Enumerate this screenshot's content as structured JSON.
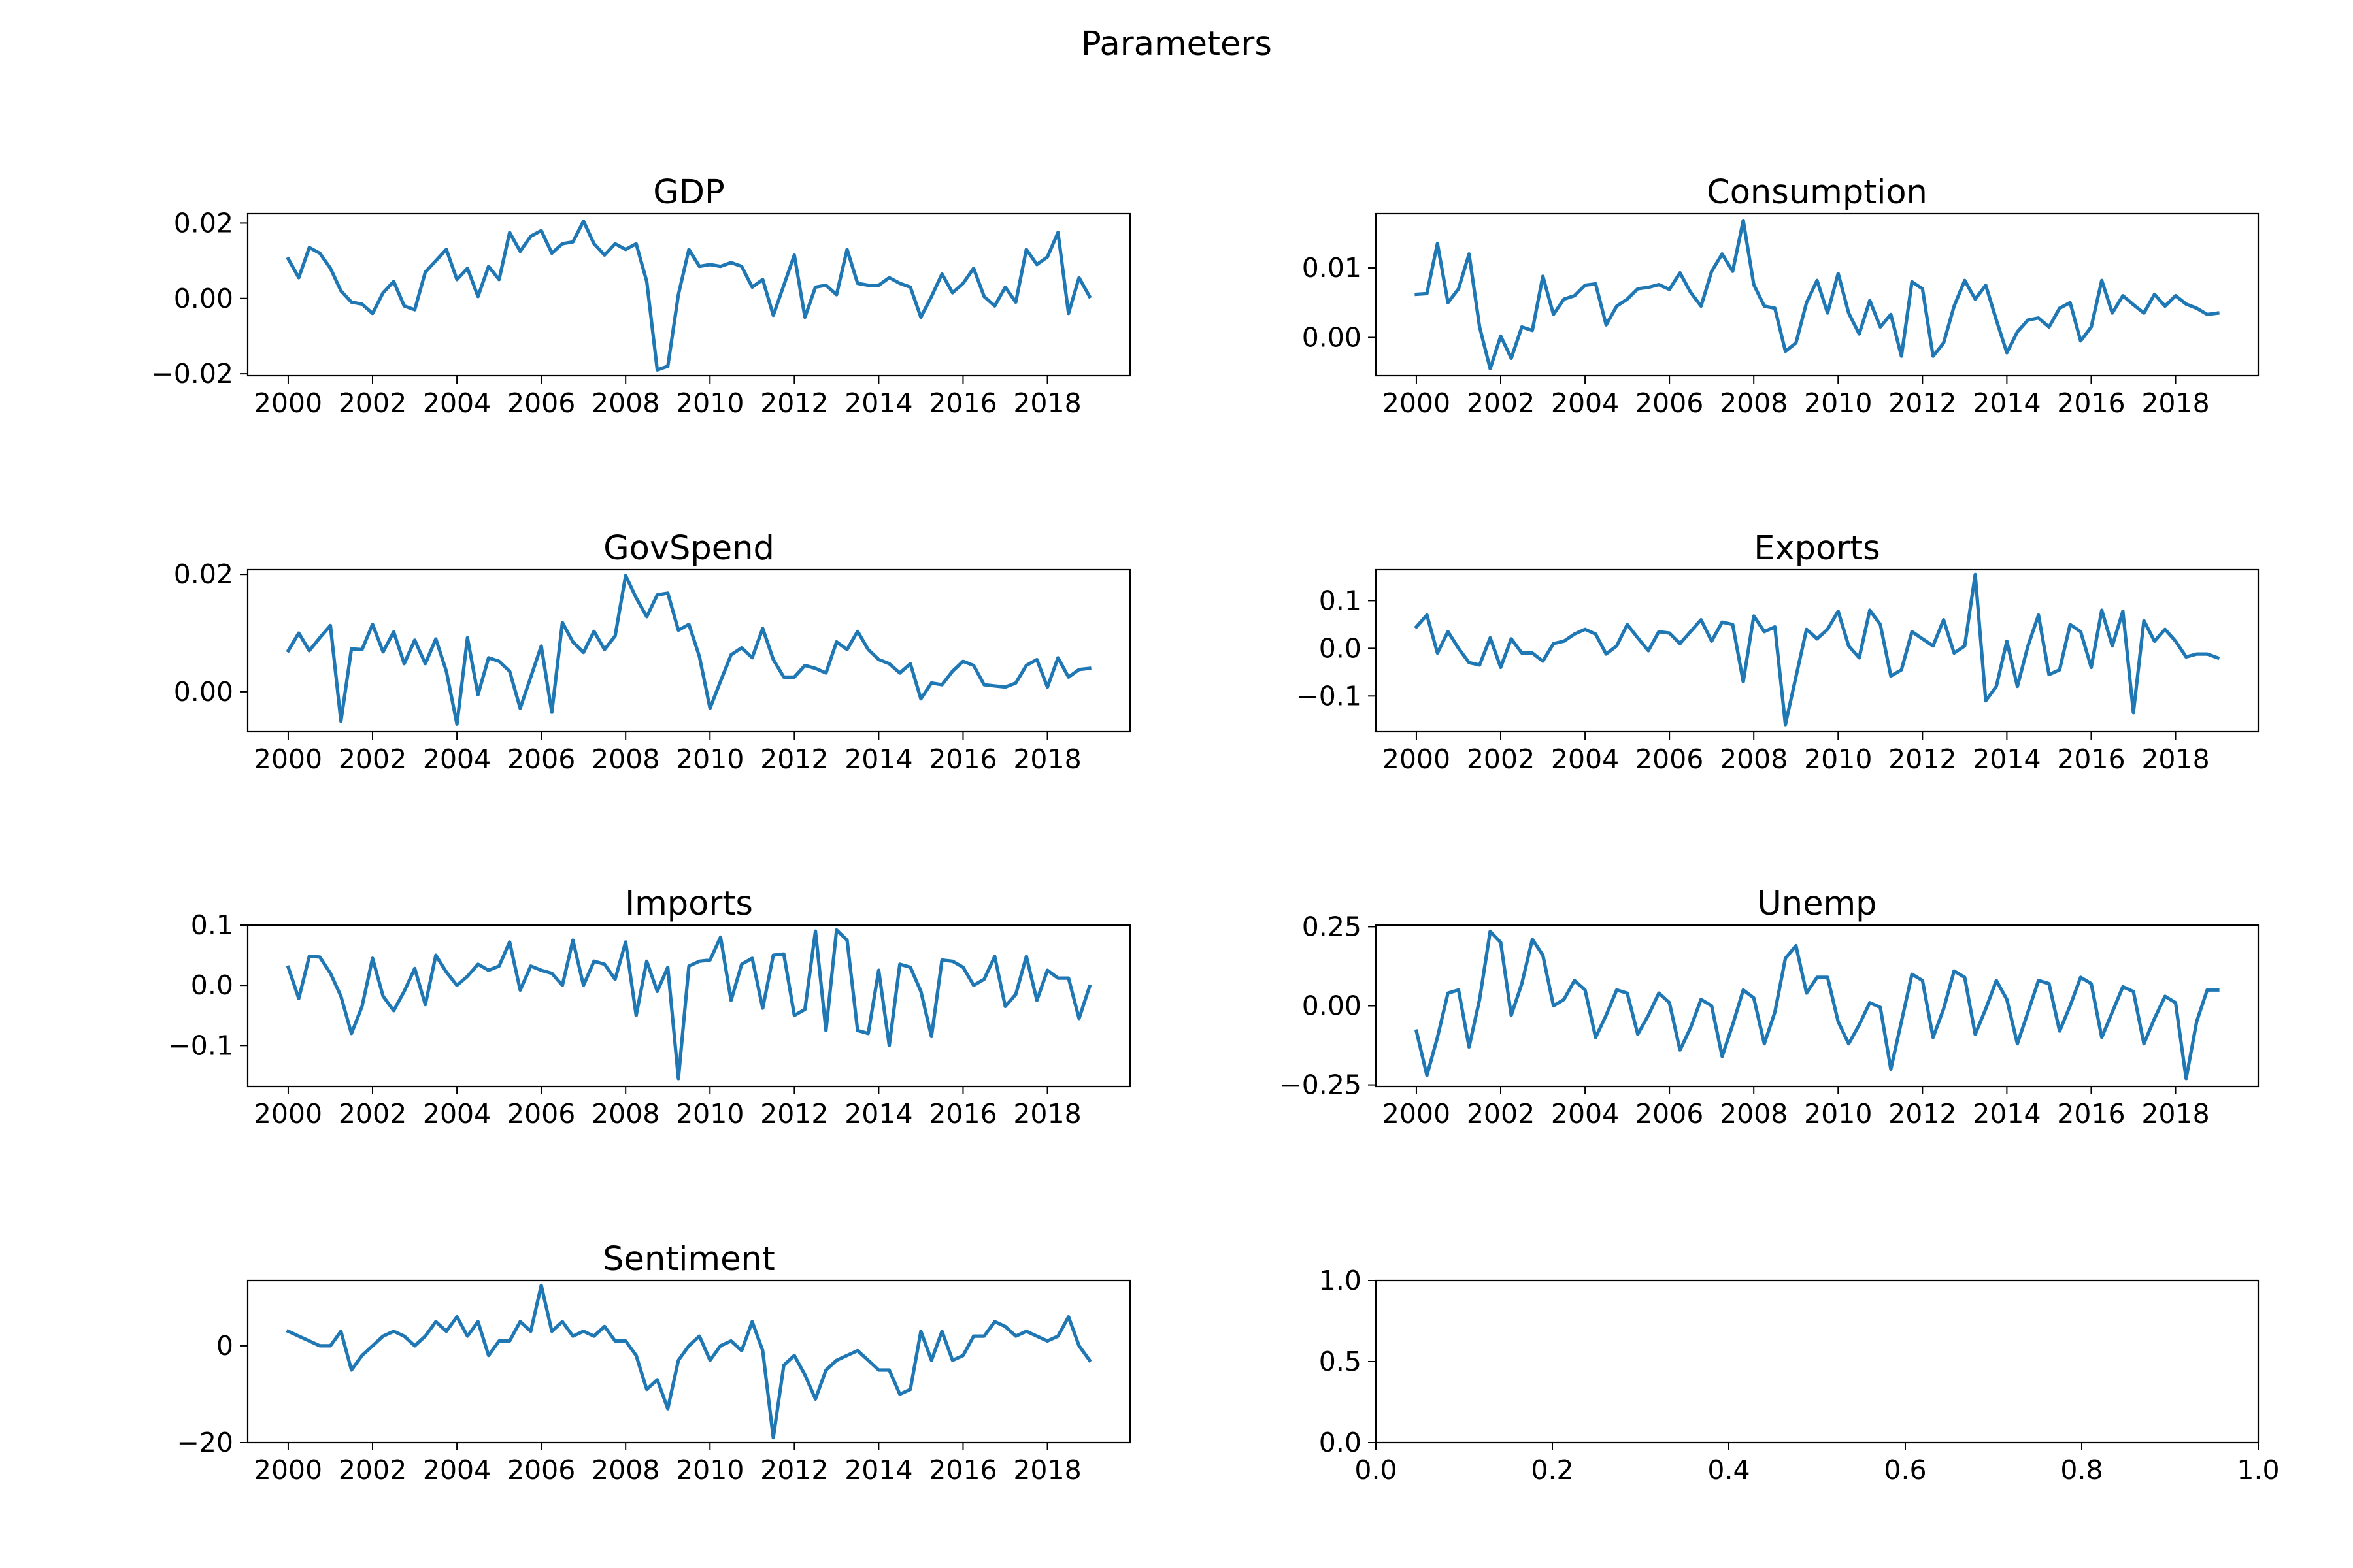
{
  "figure": {
    "suptitle": "Parameters",
    "line_color": "#1f77b4"
  },
  "chart_data": [
    {
      "type": "line",
      "title": "GDP",
      "x_start": 2000.0,
      "x_step": 0.25,
      "x_ticks": [
        2000,
        2002,
        2004,
        2006,
        2008,
        2010,
        2012,
        2014,
        2016,
        2018
      ],
      "x_tick_labels": [
        "2000",
        "2002",
        "2004",
        "2006",
        "2008",
        "2010",
        "2012",
        "2014",
        "2016",
        "2018"
      ],
      "y_ticks": [
        -0.02,
        0.0,
        0.02
      ],
      "y_tick_labels": [
        "−0.02",
        "0.00",
        "0.02"
      ],
      "xlim": [
        1999.04,
        2019.96
      ],
      "ylim": [
        -0.0205,
        0.0225
      ],
      "values": [
        0.0105,
        0.0055,
        0.0135,
        0.012,
        0.008,
        0.002,
        -0.001,
        -0.0015,
        -0.004,
        0.0015,
        0.0045,
        -0.002,
        -0.003,
        0.007,
        0.01,
        0.013,
        0.005,
        0.008,
        0.0005,
        0.0085,
        0.005,
        0.0175,
        0.0125,
        0.0165,
        0.018,
        0.012,
        0.0145,
        0.015,
        0.0205,
        0.0145,
        0.0115,
        0.0145,
        0.013,
        0.0145,
        0.0045,
        -0.019,
        -0.018,
        0.001,
        0.013,
        0.0085,
        0.009,
        0.0085,
        0.0095,
        0.0085,
        0.003,
        0.005,
        -0.0045,
        0.0035,
        0.0115,
        -0.005,
        0.003,
        0.0035,
        0.001,
        0.013,
        0.004,
        0.0035,
        0.0035,
        0.0055,
        0.004,
        0.003,
        -0.005,
        0.0005,
        0.0065,
        0.0015,
        0.004,
        0.008,
        0.0005,
        -0.002,
        0.003,
        -0.001,
        0.013,
        0.009,
        0.011,
        0.0175,
        -0.004,
        0.0055,
        0.0005
      ]
    },
    {
      "type": "line",
      "title": "Consumption",
      "x_start": 2000.0,
      "x_step": 0.25,
      "x_ticks": [
        2000,
        2002,
        2004,
        2006,
        2008,
        2010,
        2012,
        2014,
        2016,
        2018
      ],
      "x_tick_labels": [
        "2000",
        "2002",
        "2004",
        "2006",
        "2008",
        "2010",
        "2012",
        "2014",
        "2016",
        "2018"
      ],
      "y_ticks": [
        0.0,
        0.01
      ],
      "y_tick_labels": [
        "0.00",
        "0.01"
      ],
      "xlim": [
        1999.04,
        2019.96
      ],
      "ylim": [
        -0.0055,
        0.0178
      ],
      "values": [
        0.0062,
        0.0063,
        0.0135,
        0.005,
        0.007,
        0.012,
        0.0015,
        -0.0045,
        0.0002,
        -0.003,
        0.0015,
        0.001,
        0.0088,
        0.0033,
        0.0055,
        0.006,
        0.0075,
        0.0077,
        0.0018,
        0.0045,
        0.0055,
        0.007,
        0.0072,
        0.0076,
        0.0069,
        0.0093,
        0.0065,
        0.0045,
        0.0095,
        0.012,
        0.0095,
        0.0168,
        0.0076,
        0.0045,
        0.0042,
        -0.002,
        -0.0008,
        0.005,
        0.0082,
        0.0035,
        0.0092,
        0.0035,
        0.0005,
        0.0053,
        0.0015,
        0.0033,
        -0.0027,
        0.008,
        0.007,
        -0.0027,
        -0.0008,
        0.0045,
        0.0082,
        0.0055,
        0.0075,
        0.0025,
        -0.0022,
        0.0008,
        0.0025,
        0.0028,
        0.0015,
        0.0042,
        0.005,
        -0.0005,
        0.0015,
        0.0082,
        0.0035,
        0.006,
        0.0047,
        0.0035,
        0.0062,
        0.0045,
        0.006,
        0.0048,
        0.0042,
        0.0033,
        0.0035
      ]
    },
    {
      "type": "line",
      "title": "GovSpend",
      "x_start": 2000.0,
      "x_step": 0.25,
      "x_ticks": [
        2000,
        2002,
        2004,
        2006,
        2008,
        2010,
        2012,
        2014,
        2016,
        2018
      ],
      "x_tick_labels": [
        "2000",
        "2002",
        "2004",
        "2006",
        "2008",
        "2010",
        "2012",
        "2014",
        "2016",
        "2018"
      ],
      "y_ticks": [
        0.0,
        0.02
      ],
      "y_tick_labels": [
        "0.00",
        "0.02"
      ],
      "xlim": [
        1999.04,
        2019.96
      ],
      "ylim": [
        -0.0068,
        0.0208
      ],
      "values": [
        0.007,
        0.01,
        0.007,
        0.0092,
        0.0113,
        -0.005,
        0.0073,
        0.0072,
        0.0115,
        0.0068,
        0.0102,
        0.0048,
        0.0088,
        0.0048,
        0.009,
        0.0035,
        -0.0055,
        0.0092,
        -0.0005,
        0.0058,
        0.0052,
        0.0035,
        -0.0028,
        0.0025,
        0.0078,
        -0.0035,
        0.0118,
        0.0085,
        0.0067,
        0.0103,
        0.0072,
        0.0095,
        0.0198,
        0.016,
        0.0128,
        0.0165,
        0.0168,
        0.0105,
        0.0115,
        0.006,
        -0.0028,
        0.0018,
        0.0063,
        0.0075,
        0.0058,
        0.0108,
        0.0055,
        0.0025,
        0.0025,
        0.0045,
        0.004,
        0.0032,
        0.0085,
        0.0072,
        0.0103,
        0.0072,
        0.0055,
        0.0048,
        0.0032,
        0.0048,
        -0.0012,
        0.0015,
        0.0012,
        0.0035,
        0.0052,
        0.0045,
        0.0012,
        0.001,
        0.0008,
        0.0015,
        0.0045,
        0.0055,
        0.0008,
        0.0058,
        0.0025,
        0.0038,
        0.004
      ]
    },
    {
      "type": "line",
      "title": "Exports",
      "x_start": 2000.0,
      "x_step": 0.25,
      "x_ticks": [
        2000,
        2002,
        2004,
        2006,
        2008,
        2010,
        2012,
        2014,
        2016,
        2018
      ],
      "x_tick_labels": [
        "2000",
        "2002",
        "2004",
        "2006",
        "2008",
        "2010",
        "2012",
        "2014",
        "2016",
        "2018"
      ],
      "y_ticks": [
        -0.1,
        0.0,
        0.1
      ],
      "y_tick_labels": [
        "−0.1",
        "0.0",
        "0.1"
      ],
      "xlim": [
        1999.04,
        2019.96
      ],
      "ylim": [
        -0.175,
        0.165
      ],
      "values": [
        0.045,
        0.07,
        -0.01,
        0.035,
        0.0,
        -0.03,
        -0.035,
        0.022,
        -0.04,
        0.02,
        -0.01,
        -0.01,
        -0.027,
        0.01,
        0.015,
        0.03,
        0.04,
        0.03,
        -0.012,
        0.005,
        0.05,
        0.022,
        -0.005,
        0.035,
        0.032,
        0.01,
        0.035,
        0.06,
        0.015,
        0.055,
        0.05,
        -0.07,
        0.068,
        0.035,
        0.045,
        -0.16,
        -0.06,
        0.04,
        0.02,
        0.04,
        0.078,
        0.005,
        -0.02,
        0.08,
        0.05,
        -0.058,
        -0.045,
        0.035,
        0.02,
        0.005,
        0.06,
        -0.01,
        0.005,
        0.155,
        -0.11,
        -0.08,
        0.015,
        -0.08,
        0.005,
        0.07,
        -0.055,
        -0.045,
        0.05,
        0.035,
        -0.04,
        0.08,
        0.005,
        0.078,
        -0.135,
        0.058,
        0.015,
        0.04,
        0.015,
        -0.018,
        -0.012,
        -0.012,
        -0.02
      ]
    },
    {
      "type": "line",
      "title": "Imports",
      "x_start": 2000.0,
      "x_step": 0.25,
      "x_ticks": [
        2000,
        2002,
        2004,
        2006,
        2008,
        2010,
        2012,
        2014,
        2016,
        2018
      ],
      "x_tick_labels": [
        "2000",
        "2002",
        "2004",
        "2006",
        "2008",
        "2010",
        "2012",
        "2014",
        "2016",
        "2018"
      ],
      "y_ticks": [
        -0.1,
        0.0,
        0.1
      ],
      "y_tick_labels": [
        "−0.1",
        "0.0",
        "0.1"
      ],
      "xlim": [
        1999.04,
        2019.96
      ],
      "ylim": [
        -0.168,
        0.1
      ],
      "values": [
        0.03,
        -0.022,
        0.048,
        0.047,
        0.02,
        -0.018,
        -0.08,
        -0.035,
        0.045,
        -0.018,
        -0.042,
        -0.01,
        0.028,
        -0.032,
        0.05,
        0.022,
        0.0,
        0.015,
        0.035,
        0.025,
        0.032,
        0.072,
        -0.008,
        0.032,
        0.025,
        0.02,
        0.0,
        0.075,
        0.0,
        0.04,
        0.035,
        0.01,
        0.072,
        -0.05,
        0.04,
        -0.01,
        0.03,
        -0.155,
        0.032,
        0.04,
        0.042,
        0.08,
        -0.025,
        0.035,
        0.045,
        -0.038,
        0.05,
        0.052,
        -0.05,
        -0.04,
        0.09,
        -0.075,
        0.092,
        0.075,
        -0.075,
        -0.08,
        0.025,
        -0.1,
        0.035,
        0.03,
        -0.01,
        -0.085,
        0.042,
        0.04,
        0.03,
        0.0,
        0.01,
        0.048,
        -0.035,
        -0.015,
        0.048,
        -0.025,
        0.025,
        0.012,
        0.012,
        -0.055,
        -0.002
      ]
    },
    {
      "type": "line",
      "title": "Unemp",
      "x_start": 2000.0,
      "x_step": 0.25,
      "x_ticks": [
        2000,
        2002,
        2004,
        2006,
        2008,
        2010,
        2012,
        2014,
        2016,
        2018
      ],
      "x_tick_labels": [
        "2000",
        "2002",
        "2004",
        "2006",
        "2008",
        "2010",
        "2012",
        "2014",
        "2016",
        "2018"
      ],
      "y_ticks": [
        -0.25,
        0.0,
        0.25
      ],
      "y_tick_labels": [
        "−0.25",
        "0.00",
        "0.25"
      ],
      "xlim": [
        1999.04,
        2019.96
      ],
      "ylim": [
        -0.255,
        0.255
      ],
      "values": [
        -0.08,
        -0.22,
        -0.1,
        0.04,
        0.05,
        -0.13,
        0.02,
        0.235,
        0.2,
        -0.03,
        0.07,
        0.21,
        0.16,
        0.0,
        0.02,
        0.08,
        0.05,
        -0.1,
        -0.03,
        0.05,
        0.04,
        -0.09,
        -0.03,
        0.04,
        0.01,
        -0.14,
        -0.07,
        0.02,
        0.0,
        -0.16,
        -0.06,
        0.05,
        0.025,
        -0.12,
        -0.02,
        0.15,
        0.19,
        0.04,
        0.09,
        0.09,
        -0.05,
        -0.12,
        -0.06,
        0.01,
        -0.005,
        -0.2,
        -0.05,
        0.1,
        0.08,
        -0.1,
        -0.01,
        0.11,
        0.09,
        -0.09,
        -0.01,
        0.08,
        0.02,
        -0.12,
        -0.02,
        0.08,
        0.07,
        -0.08,
        0.0,
        0.09,
        0.07,
        -0.1,
        -0.02,
        0.06,
        0.045,
        -0.12,
        -0.04,
        0.03,
        0.01,
        -0.23,
        -0.05,
        0.05,
        0.05
      ]
    },
    {
      "type": "line",
      "title": "Sentiment",
      "x_start": 2000.0,
      "x_step": 0.25,
      "x_ticks": [
        2000,
        2002,
        2004,
        2006,
        2008,
        2010,
        2012,
        2014,
        2016,
        2018
      ],
      "x_tick_labels": [
        "2000",
        "2002",
        "2004",
        "2006",
        "2008",
        "2010",
        "2012",
        "2014",
        "2016",
        "2018"
      ],
      "y_ticks": [
        -20,
        0
      ],
      "y_tick_labels": [
        "−20",
        "0"
      ],
      "xlim": [
        1999.04,
        2019.96
      ],
      "ylim": [
        -20.0,
        13.5
      ],
      "values": [
        3.0,
        2.0,
        1.0,
        0.0,
        0.0,
        3.0,
        -5.0,
        -2.0,
        0.0,
        2.0,
        3.0,
        2.0,
        0.0,
        2.0,
        5.0,
        3.0,
        6.0,
        2.0,
        5.0,
        -2.0,
        1.0,
        1.0,
        5.0,
        3.0,
        12.5,
        3.0,
        5.0,
        2.0,
        3.0,
        2.0,
        4.0,
        1.0,
        1.0,
        -2.0,
        -9.0,
        -7.0,
        -13.0,
        -3.0,
        0.0,
        2.0,
        -3.0,
        0.0,
        1.0,
        -1.0,
        5.0,
        -1.0,
        -19.0,
        -4.0,
        -2.0,
        -6.0,
        -11.0,
        -5.0,
        -3.0,
        -2.0,
        -1.0,
        -3.0,
        -5.0,
        -5.0,
        -10.0,
        -9.0,
        3.0,
        -3.0,
        3.0,
        -3.0,
        -2.0,
        2.0,
        2.0,
        5.0,
        4.0,
        2.0,
        3.0,
        2.0,
        1.0,
        2.0,
        6.0,
        0.0,
        -3.0
      ]
    },
    {
      "type": "line",
      "title": "",
      "x_start": 0,
      "x_step": 0,
      "x_ticks": [
        0.0,
        0.2,
        0.4,
        0.6,
        0.8,
        1.0
      ],
      "x_tick_labels": [
        "0.0",
        "0.2",
        "0.4",
        "0.6",
        "0.8",
        "1.0"
      ],
      "y_ticks": [
        0.0,
        0.5,
        1.0
      ],
      "y_tick_labels": [
        "0.0",
        "0.5",
        "1.0"
      ],
      "xlim": [
        0.0,
        1.0
      ],
      "ylim": [
        0.0,
        1.0
      ],
      "values": []
    }
  ]
}
